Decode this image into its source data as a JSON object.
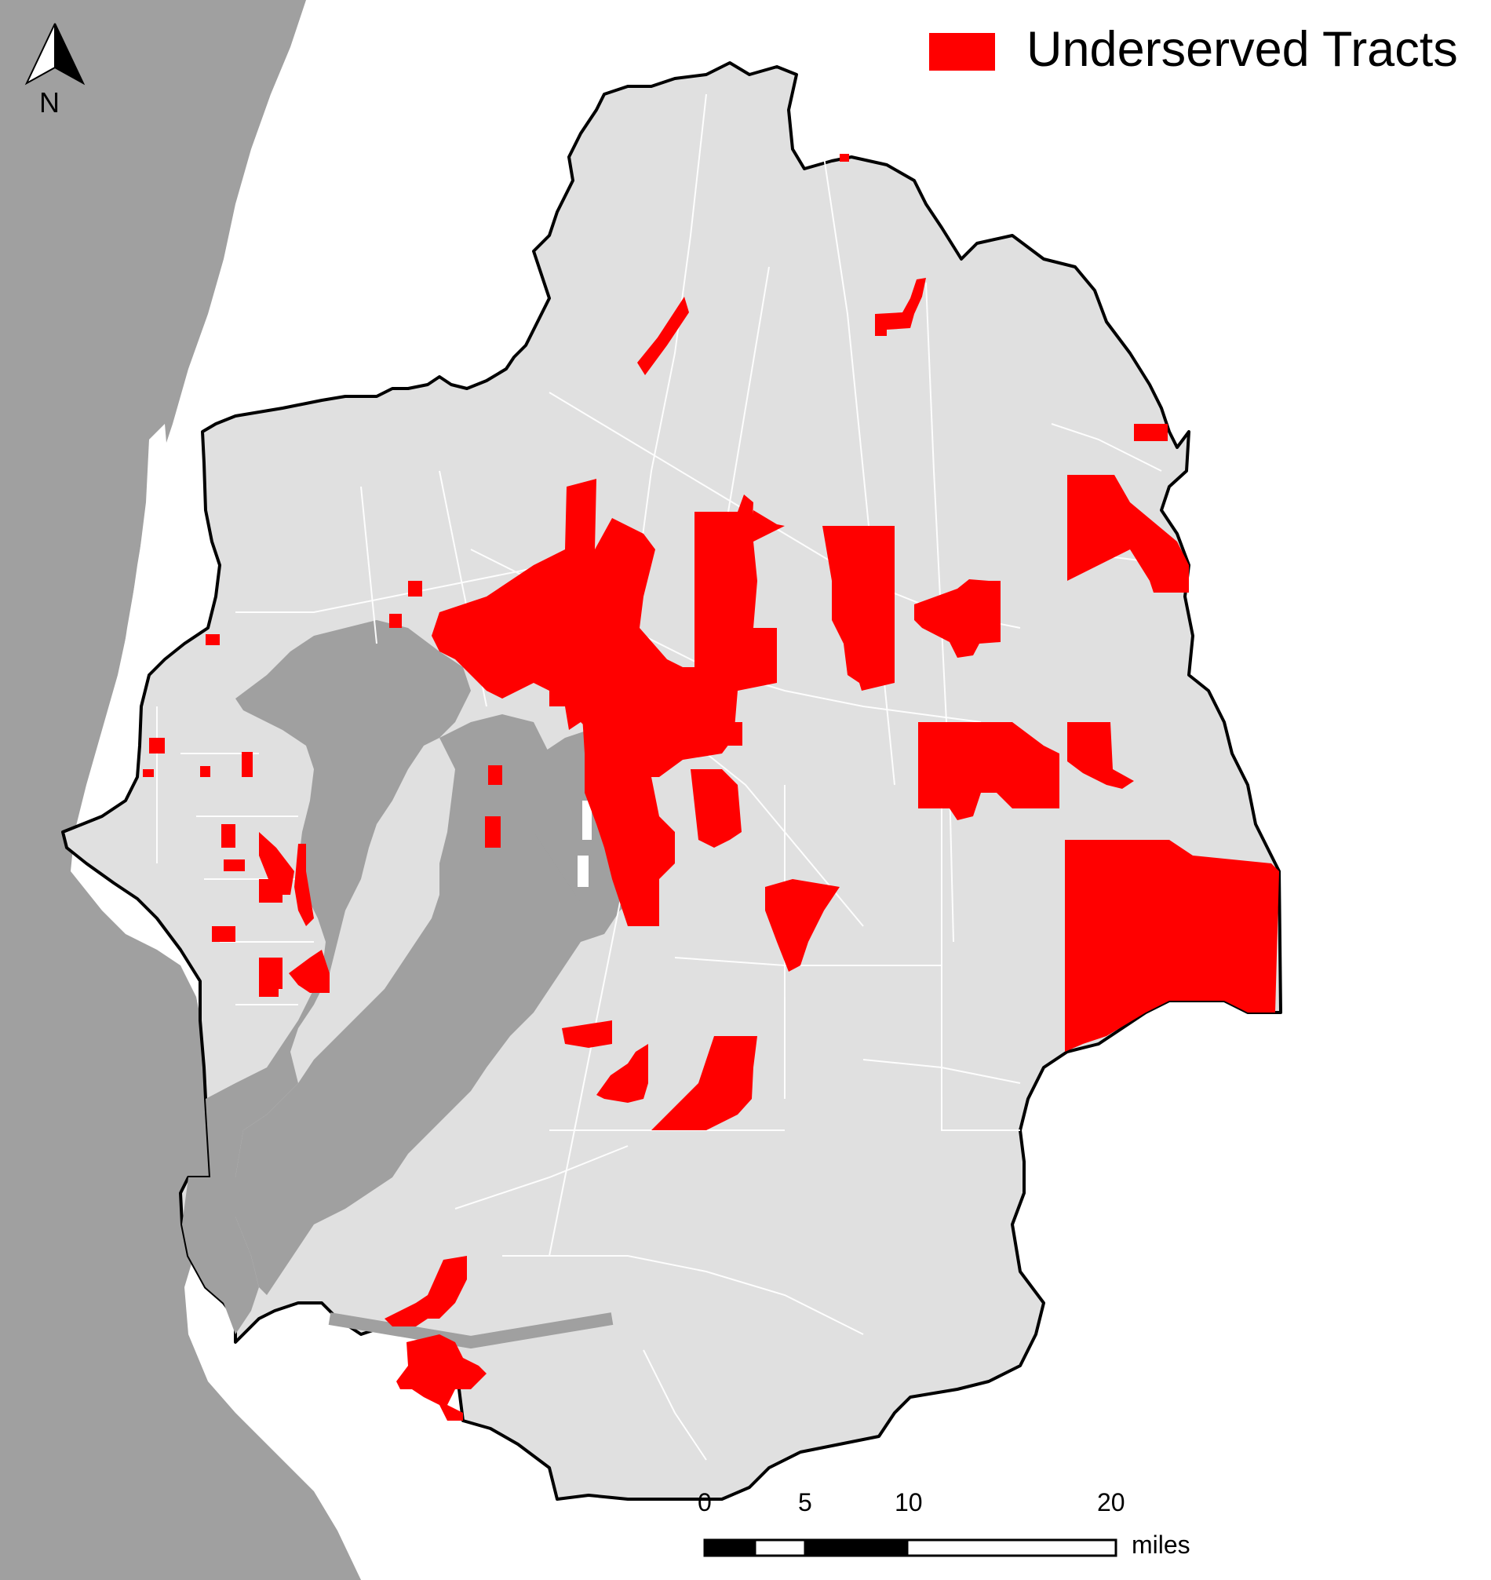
{
  "legend": {
    "label": "Underserved Tracts",
    "swatch_color": "#ff0000"
  },
  "north_arrow": {
    "label": "N",
    "icon": "north-arrow-icon"
  },
  "scale_bar": {
    "ticks": [
      "0",
      "5",
      "10",
      "20"
    ],
    "unit": "miles"
  },
  "colors": {
    "water": "#a0a0a0",
    "region_fill": "#e0e0e0",
    "boundary": "#000000",
    "roads": "#ffffff",
    "underserved": "#ff0000"
  }
}
